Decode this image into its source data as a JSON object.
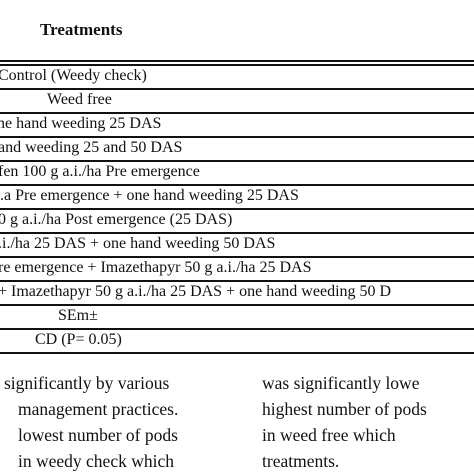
{
  "table": {
    "header": "Treatments",
    "rows": [
      "Control (Weedy check)",
      "Weed free",
      "ne hand weeding 25 DAS",
      "and weeding 25 and 50 DAS",
      "fen 100 g a.i./ha Pre emergence",
      ".a Pre emergence + one hand weeding 25 DAS",
      "0 g a.i./ha Post emergence (25 DAS)",
      ".i./ha 25 DAS + one hand weeding 50 DAS",
      "re emergence + Imazethapyr 50 g a.i./ha 25 DAS",
      "+ Imazethapyr 50 g a.i./ha 25 DAS + one hand weeding 50 D",
      "SEm±",
      "CD (P= 0.05)"
    ]
  },
  "body_text": {
    "left_column": [
      "significantly by various",
      "management practices.",
      "lowest number of pods",
      "in weedy check which"
    ],
    "right_column": [
      "was significantly lowe",
      "highest number of pods",
      "in weed free which",
      "treatments."
    ]
  }
}
